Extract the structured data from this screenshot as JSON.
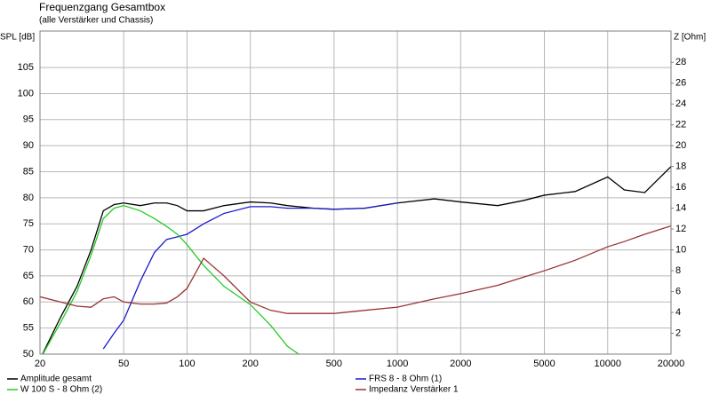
{
  "chart_data": {
    "type": "line",
    "title": "Frequenzgang Gesamtbox",
    "subtitle": "(alle Verstärker und Chassis)",
    "y_label": "SPL [dB]",
    "y2_label": "Z [Ohm]",
    "x_scale": "log",
    "grid": true,
    "x": [
      20,
      25,
      30,
      35,
      40,
      45,
      50,
      60,
      70,
      80,
      90,
      100,
      120,
      150,
      200,
      250,
      300,
      400,
      500,
      700,
      1000,
      1500,
      2000,
      3000,
      4000,
      5000,
      7000,
      10000,
      12000,
      15000,
      20000
    ],
    "xlim": [
      20,
      20000
    ],
    "xticks": [
      20,
      50,
      100,
      200,
      500,
      1000,
      2000,
      5000,
      10000,
      20000
    ],
    "ylim": [
      50,
      112
    ],
    "yticks": [
      50,
      55,
      60,
      65,
      70,
      75,
      80,
      85,
      90,
      95,
      100,
      105
    ],
    "y2lim": [
      0,
      31
    ],
    "y2ticks": [
      2,
      4,
      6,
      8,
      10,
      12,
      14,
      16,
      18,
      20,
      22,
      24,
      26,
      28
    ],
    "series": [
      {
        "name": "Amplitude gesamt",
        "color": "#000000",
        "values": [
          49,
          57,
          63,
          70,
          77.5,
          78.7,
          79,
          78.5,
          79,
          79,
          78.5,
          77.5,
          77.5,
          78.5,
          79.2,
          79,
          78.5,
          78,
          77.8,
          78,
          79,
          79.8,
          79.2,
          78.5,
          79.5,
          80.5,
          81.2,
          84,
          81.5,
          81,
          86
        ]
      },
      {
        "name": "FRS 8 - 8 Ohm (1)",
        "color": "#1a1acc",
        "values": [
          null,
          null,
          null,
          null,
          51,
          54,
          56.5,
          64,
          69.5,
          72,
          72.5,
          73,
          75,
          77,
          78.3,
          78.3,
          78,
          78,
          77.8,
          78,
          79,
          null,
          null,
          null,
          null,
          null,
          null,
          null,
          null,
          null,
          null
        ]
      },
      {
        "name": "W 100 S - 8 Ohm (2)",
        "color": "#22cc22",
        "values": [
          49,
          56,
          62,
          69,
          76,
          78,
          78.5,
          77.5,
          76,
          74.5,
          73,
          71,
          67,
          63,
          59.5,
          55.5,
          51.5,
          48,
          null,
          null,
          null,
          null,
          null,
          null,
          null,
          null,
          null,
          null,
          null,
          null,
          null
        ]
      },
      {
        "name": "Impedanz Verstärker 1",
        "color": "#993333",
        "axis": "y2",
        "values": [
          5.5,
          5,
          4.6,
          4.5,
          5.3,
          5.5,
          5,
          4.8,
          4.8,
          4.9,
          5.5,
          6.3,
          9.2,
          7.5,
          5,
          4.2,
          3.9,
          3.9,
          3.9,
          4.2,
          4.5,
          5.3,
          5.8,
          6.6,
          7.4,
          8,
          9,
          10.3,
          10.8,
          11.5,
          12.3
        ]
      }
    ]
  }
}
